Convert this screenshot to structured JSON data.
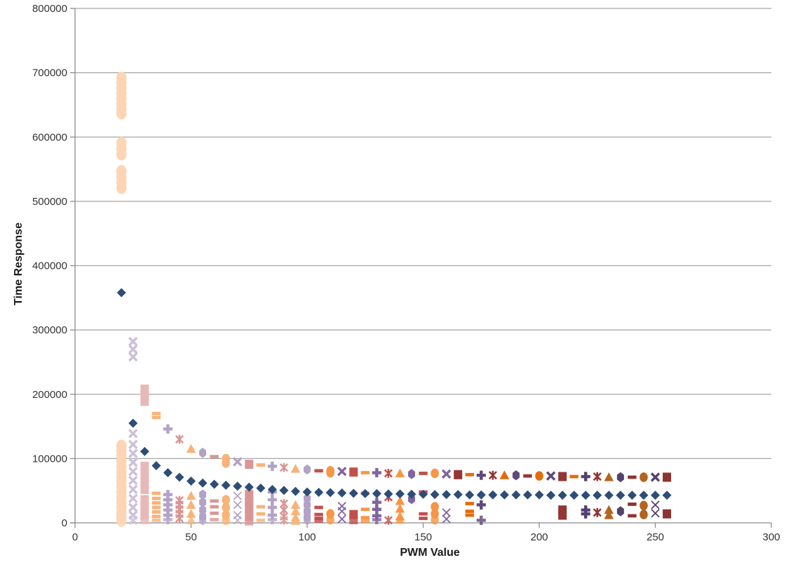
{
  "chart_data": {
    "type": "scatter",
    "title": "",
    "xlabel": "PWM Value",
    "ylabel": "Time Response",
    "xlim": [
      0,
      300
    ],
    "ylim": [
      0,
      800000
    ],
    "x_ticks": [
      0,
      50,
      100,
      150,
      200,
      250,
      300
    ],
    "y_ticks": [
      0,
      100000,
      200000,
      300000,
      400000,
      500000,
      600000,
      700000,
      800000
    ],
    "grid": "horizontal-major-gridlines",
    "legend": "none",
    "gridline_color": "#A6A6A6",
    "axis_line_color": "#8C8C8C",
    "tick_label_color": "#333333",
    "palette": {
      "navy": "#2E4D76",
      "orange": [
        "#FCD5B4",
        "#F9B278",
        "#F79646",
        "#E36C0A",
        "#B4641E"
      ],
      "purple": [
        "#CCC0DA",
        "#B3A2C7",
        "#8064A2",
        "#5F497A",
        "#54416F"
      ],
      "red": [
        "#E6B9B8",
        "#D99694",
        "#C0504D",
        "#943634",
        "#8C3432"
      ]
    },
    "diamond_series": {
      "name": "min-time-response",
      "marker": "diamond",
      "color": "#2E4D76",
      "points": [
        [
          20,
          358000
        ],
        [
          25,
          155000
        ],
        [
          30,
          111000
        ],
        [
          35,
          89000
        ],
        [
          40,
          78000
        ],
        [
          45,
          71000
        ],
        [
          50,
          65000
        ],
        [
          55,
          62000
        ],
        [
          60,
          60000
        ],
        [
          65,
          58500
        ],
        [
          70,
          57000
        ],
        [
          75,
          55500
        ],
        [
          80,
          54000
        ],
        [
          85,
          52000
        ],
        [
          90,
          50500
        ],
        [
          95,
          49000
        ],
        [
          100,
          48000
        ],
        [
          105,
          47500
        ],
        [
          110,
          47000
        ],
        [
          115,
          46500
        ],
        [
          120,
          46000
        ],
        [
          125,
          45500
        ],
        [
          130,
          45500
        ],
        [
          135,
          45000
        ],
        [
          140,
          45000
        ],
        [
          145,
          44500
        ],
        [
          150,
          44500
        ],
        [
          155,
          44000
        ],
        [
          160,
          44000
        ],
        [
          165,
          44000
        ],
        [
          170,
          43500
        ],
        [
          175,
          43500
        ],
        [
          180,
          43500
        ],
        [
          185,
          43500
        ],
        [
          190,
          43500
        ],
        [
          195,
          43500
        ],
        [
          200,
          43500
        ],
        [
          205,
          43000
        ],
        [
          210,
          43000
        ],
        [
          215,
          43000
        ],
        [
          220,
          43000
        ],
        [
          225,
          43000
        ],
        [
          230,
          43000
        ],
        [
          235,
          43000
        ],
        [
          240,
          43000
        ],
        [
          245,
          43000
        ],
        [
          250,
          43000
        ],
        [
          255,
          43000
        ]
      ]
    },
    "column_series": [
      {
        "x": 20,
        "marker": "circle",
        "family": "orange",
        "shade": 0,
        "big": true,
        "values": [
          692000,
          684000,
          676000,
          668000,
          660000,
          652000,
          644000,
          637000,
          591000,
          582000,
          573000,
          547000,
          538000,
          529000,
          521000,
          120000,
          112000,
          104000,
          96000,
          88000,
          80000,
          72000,
          64000,
          56000,
          48000,
          40000,
          32000,
          24000,
          16000,
          8000,
          3000
        ]
      },
      {
        "x": 25,
        "marker": "x",
        "family": "purple",
        "shade": 0,
        "values": [
          282000,
          270000,
          258000,
          139000,
          122000,
          108000,
          94000,
          80000,
          66000,
          52000,
          38000,
          24000,
          12000,
          4000
        ]
      },
      {
        "x": 30,
        "marker": "square",
        "family": "red",
        "shade": 0,
        "values": [
          208000,
          198000,
          189000,
          88000,
          76000,
          64000,
          52000,
          36000,
          24000,
          12000,
          5000
        ]
      },
      {
        "x": 35,
        "marker": "dash",
        "family": "orange",
        "shade": 1,
        "values": [
          170000,
          164000,
          46000,
          38000,
          31000,
          24000,
          17000,
          10000,
          4000
        ]
      },
      {
        "x": 40,
        "marker": "plus",
        "family": "purple",
        "shade": 1,
        "values": [
          146000,
          44000,
          36000,
          28000,
          20000,
          12000,
          5000
        ]
      },
      {
        "x": 45,
        "marker": "asterisk",
        "family": "red",
        "shade": 1,
        "values": [
          130000,
          35000,
          28000,
          21000,
          14000,
          7000
        ]
      },
      {
        "x": 50,
        "marker": "triangle",
        "family": "orange",
        "shade": 1,
        "values": [
          115000,
          42000,
          28000,
          14000,
          4000
        ]
      },
      {
        "x": 55,
        "marker": "hexagon",
        "family": "purple",
        "shade": 1,
        "values": [
          109000,
          44000,
          32000,
          20000,
          10000,
          4000
        ]
      },
      {
        "x": 60,
        "marker": "dash",
        "family": "red",
        "shade": 1,
        "values": [
          103000,
          34000,
          25000,
          15000,
          5000
        ]
      },
      {
        "x": 65,
        "marker": "circle",
        "family": "orange",
        "shade": 1,
        "values": [
          100000,
          93000,
          36000,
          24000,
          12000,
          4000
        ]
      },
      {
        "x": 70,
        "marker": "x",
        "family": "purple",
        "shade": 1,
        "values": [
          95000,
          42000,
          28000,
          12000,
          4000
        ]
      },
      {
        "x": 75,
        "marker": "square",
        "family": "red",
        "shade": 1,
        "values": [
          91000,
          44000,
          33000,
          22000,
          10000,
          3000
        ]
      },
      {
        "x": 80,
        "marker": "dash",
        "family": "orange",
        "shade": 1,
        "values": [
          90000,
          25000,
          14000,
          4000
        ]
      },
      {
        "x": 85,
        "marker": "plus",
        "family": "purple",
        "shade": 1,
        "values": [
          88000,
          48000,
          36000,
          24000,
          12000,
          5000
        ]
      },
      {
        "x": 90,
        "marker": "asterisk",
        "family": "red",
        "shade": 1,
        "values": [
          86000,
          30000,
          20000,
          10000,
          4000
        ]
      },
      {
        "x": 95,
        "marker": "triangle",
        "family": "orange",
        "shade": 1,
        "values": [
          84000,
          28000,
          18000,
          8000,
          3000
        ]
      },
      {
        "x": 100,
        "marker": "hexagon",
        "family": "purple",
        "shade": 1,
        "values": [
          83000,
          38000,
          28000,
          18000,
          9000,
          4000
        ]
      },
      {
        "x": 105,
        "marker": "dash",
        "family": "red",
        "shade": 2,
        "values": [
          81000,
          24000,
          13000,
          7000,
          3000
        ]
      },
      {
        "x": 110,
        "marker": "circle",
        "family": "orange",
        "shade": 2,
        "values": [
          81000,
          78000,
          14000,
          5000
        ]
      },
      {
        "x": 115,
        "marker": "x",
        "family": "purple",
        "shade": 2,
        "values": [
          80000,
          26000,
          18000,
          6000
        ]
      },
      {
        "x": 120,
        "marker": "square",
        "family": "red",
        "shade": 2,
        "values": [
          79000,
          13000,
          5000
        ]
      },
      {
        "x": 125,
        "marker": "dash",
        "family": "orange",
        "shade": 2,
        "values": [
          78000,
          46000,
          21000,
          8000,
          3000
        ]
      },
      {
        "x": 130,
        "marker": "plus",
        "family": "purple",
        "shade": 2,
        "values": [
          78000,
          32000,
          21000,
          11000,
          5000
        ]
      },
      {
        "x": 135,
        "marker": "asterisk",
        "family": "red",
        "shade": 2,
        "values": [
          77000,
          40000,
          4000
        ]
      },
      {
        "x": 140,
        "marker": "triangle",
        "family": "orange",
        "shade": 2,
        "values": [
          77000,
          34000,
          22000,
          10000,
          5000
        ]
      },
      {
        "x": 145,
        "marker": "hexagon",
        "family": "purple",
        "shade": 2,
        "values": [
          76000,
          37000
        ]
      },
      {
        "x": 150,
        "marker": "dash",
        "family": "red",
        "shade": 2,
        "values": [
          77000,
          48000,
          14000,
          7000
        ]
      },
      {
        "x": 155,
        "marker": "circle",
        "family": "orange",
        "shade": 2,
        "values": [
          77000,
          25000,
          14000,
          5000
        ]
      },
      {
        "x": 160,
        "marker": "x",
        "family": "purple",
        "shade": 2,
        "values": [
          76000,
          16000,
          6000
        ]
      },
      {
        "x": 165,
        "marker": "square",
        "family": "red",
        "shade": 3,
        "values": [
          75000
        ]
      },
      {
        "x": 170,
        "marker": "dash",
        "family": "orange",
        "shade": 3,
        "values": [
          75000,
          30000,
          18000,
          12000
        ]
      },
      {
        "x": 175,
        "marker": "plus",
        "family": "purple",
        "shade": 3,
        "values": [
          74000,
          28000,
          4000
        ]
      },
      {
        "x": 180,
        "marker": "asterisk",
        "family": "red",
        "shade": 3,
        "values": [
          74000
        ]
      },
      {
        "x": 185,
        "marker": "triangle",
        "family": "orange",
        "shade": 3,
        "values": [
          74000
        ]
      },
      {
        "x": 190,
        "marker": "hexagon",
        "family": "purple",
        "shade": 3,
        "values": [
          74000
        ]
      },
      {
        "x": 195,
        "marker": "dash",
        "family": "red",
        "shade": 3,
        "values": [
          73000
        ]
      },
      {
        "x": 200,
        "marker": "circle",
        "family": "orange",
        "shade": 3,
        "values": [
          73000
        ]
      },
      {
        "x": 205,
        "marker": "x",
        "family": "purple",
        "shade": 3,
        "values": [
          73000
        ]
      },
      {
        "x": 210,
        "marker": "square",
        "family": "red",
        "shade": 3,
        "values": [
          72000,
          20000,
          12000
        ]
      },
      {
        "x": 215,
        "marker": "dash",
        "family": "orange",
        "shade": 3,
        "values": [
          72000
        ]
      },
      {
        "x": 220,
        "marker": "plus",
        "family": "purple",
        "shade": 4,
        "values": [
          72000,
          20000,
          14000
        ]
      },
      {
        "x": 225,
        "marker": "asterisk",
        "family": "red",
        "shade": 4,
        "values": [
          72000,
          16000
        ]
      },
      {
        "x": 230,
        "marker": "triangle",
        "family": "orange",
        "shade": 4,
        "values": [
          71000,
          20000,
          12000
        ]
      },
      {
        "x": 235,
        "marker": "hexagon",
        "family": "purple",
        "shade": 4,
        "values": [
          71000,
          18000
        ]
      },
      {
        "x": 240,
        "marker": "dash",
        "family": "red",
        "shade": 4,
        "values": [
          71000,
          29000,
          11000
        ]
      },
      {
        "x": 245,
        "marker": "circle",
        "family": "orange",
        "shade": 4,
        "values": [
          71000,
          27000,
          13000
        ]
      },
      {
        "x": 250,
        "marker": "x",
        "family": "purple",
        "shade": 4,
        "values": [
          71000,
          28000,
          15000
        ]
      },
      {
        "x": 255,
        "marker": "square",
        "family": "red",
        "shade": 4,
        "values": [
          71000,
          14000
        ]
      }
    ]
  }
}
